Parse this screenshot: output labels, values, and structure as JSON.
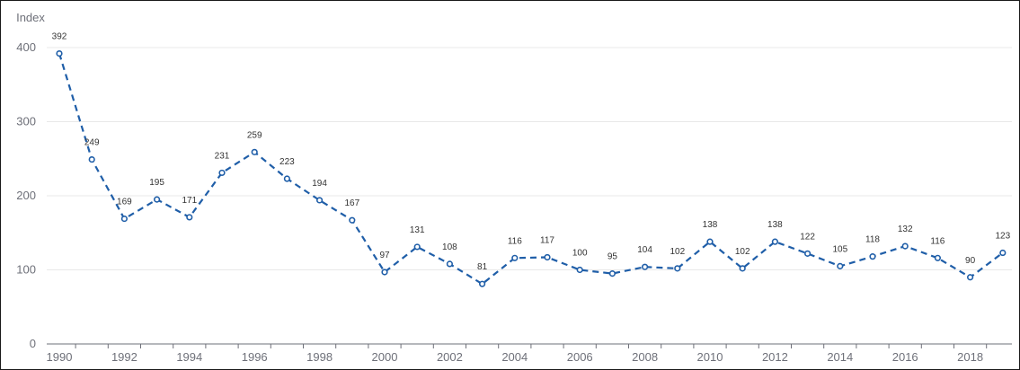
{
  "chart_data": {
    "type": "line",
    "ylabel": "Index",
    "ylim": [
      0,
      400
    ],
    "yticks": [
      0,
      100,
      200,
      300,
      400
    ],
    "x": [
      1990,
      1991,
      1992,
      1993,
      1994,
      1995,
      1996,
      1997,
      1998,
      1999,
      2000,
      2001,
      2002,
      2003,
      2004,
      2005,
      2006,
      2007,
      2008,
      2009,
      2010,
      2011,
      2012,
      2013,
      2014,
      2015,
      2016,
      2017,
      2018,
      2019
    ],
    "xticks": [
      "1990",
      "1992",
      "1994",
      "1996",
      "1998",
      "2000",
      "2002",
      "2004",
      "2006",
      "2008",
      "2010",
      "2012",
      "2014",
      "2016",
      "2018"
    ],
    "series": [
      {
        "values": [
          392,
          249,
          169,
          195,
          171,
          231,
          259,
          223,
          194,
          167,
          97,
          131,
          108,
          81,
          116,
          117,
          100,
          95,
          104,
          102,
          138,
          102,
          138,
          122,
          105,
          118,
          132,
          116,
          90,
          123
        ]
      }
    ],
    "line_color": "#1f5ea8",
    "line_style": "dashed",
    "grid": "horizontal",
    "data_labels": true
  }
}
